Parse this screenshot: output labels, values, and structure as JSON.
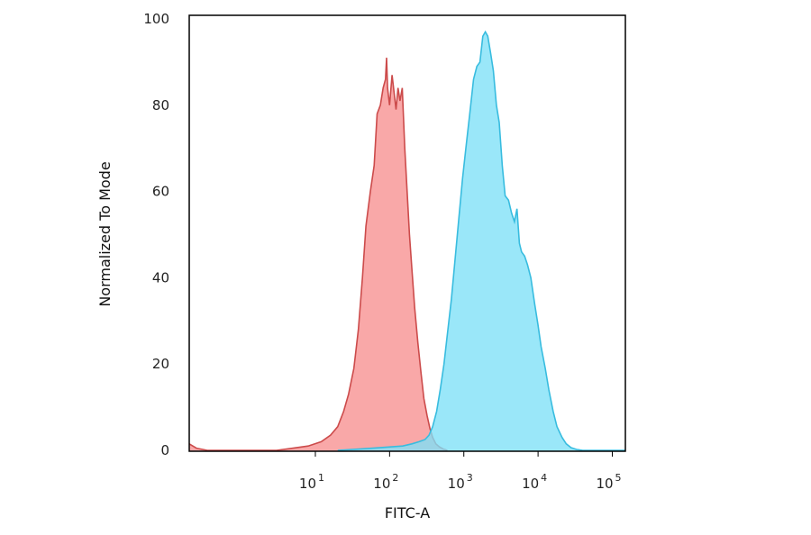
{
  "chart_data": {
    "type": "area",
    "xlabel": "FITC-A",
    "ylabel": "Normalized To Mode",
    "x_scale": "log",
    "xlim": [
      0.2,
      150000
    ],
    "ylim": [
      0,
      100
    ],
    "grid": false,
    "y_ticks": [
      {
        "value": 0,
        "label": "0"
      },
      {
        "value": 20,
        "label": "20"
      },
      {
        "value": 40,
        "label": "40"
      },
      {
        "value": 60,
        "label": "60"
      },
      {
        "value": 80,
        "label": "80"
      },
      {
        "value": 100,
        "label": "100"
      }
    ],
    "x_ticks": [
      {
        "value": 10,
        "base": "10",
        "exp": "1"
      },
      {
        "value": 100,
        "base": "10",
        "exp": "2"
      },
      {
        "value": 1000,
        "base": "10",
        "exp": "3"
      },
      {
        "value": 10000,
        "base": "10",
        "exp": "4"
      },
      {
        "value": 100000,
        "base": "10",
        "exp": "5"
      }
    ],
    "series": [
      {
        "fill": "#f78f8f",
        "stroke": "#cc4b4b",
        "x": [
          0.2,
          0.25,
          0.35,
          3,
          5,
          8,
          12,
          16,
          20,
          24,
          28,
          33,
          38,
          43,
          48,
          55,
          62,
          68,
          75,
          82,
          88,
          91,
          94,
          100,
          108,
          115,
          122,
          130,
          138,
          148,
          160,
          172,
          185,
          200,
          218,
          240,
          265,
          290,
          320,
          350,
          380,
          420,
          470,
          530,
          600
        ],
        "y": [
          1.5,
          0.5,
          0,
          0,
          0.5,
          1,
          2,
          3.5,
          5.5,
          9,
          13,
          19,
          28,
          40,
          52,
          60,
          66,
          78,
          80,
          84,
          86,
          91,
          84,
          80,
          87,
          83,
          79,
          84,
          81,
          84,
          70,
          60,
          50,
          42,
          33,
          25,
          18,
          12,
          8,
          5,
          3,
          1.5,
          0.8,
          0.3,
          0
        ]
      },
      {
        "fill": "#7de0f7",
        "stroke": "#38bcdf",
        "x": [
          20,
          60,
          150,
          200,
          250,
          300,
          340,
          380,
          430,
          480,
          540,
          600,
          680,
          760,
          860,
          960,
          1080,
          1200,
          1350,
          1500,
          1650,
          1800,
          1950,
          2100,
          2300,
          2500,
          2750,
          3000,
          3300,
          3600,
          4000,
          4400,
          4800,
          5200,
          5600,
          6000,
          6600,
          7200,
          8000,
          9000,
          10000,
          11000,
          12500,
          14000,
          16000,
          18000,
          21000,
          24000,
          28000,
          33000,
          40000,
          50000,
          70000,
          100000,
          150000
        ],
        "y": [
          0,
          0.5,
          1,
          1.5,
          2,
          2.5,
          3.5,
          5.5,
          9,
          14,
          20,
          27,
          35,
          44,
          54,
          63,
          71,
          78,
          86,
          89,
          90,
          96,
          97,
          96,
          92,
          88,
          80,
          76,
          66,
          59,
          58,
          55,
          53,
          56,
          48,
          46,
          45,
          43,
          40,
          34,
          29,
          24,
          19,
          14,
          9,
          5.5,
          3,
          1.5,
          0.6,
          0.2,
          0,
          0,
          0,
          0,
          0
        ]
      }
    ]
  }
}
